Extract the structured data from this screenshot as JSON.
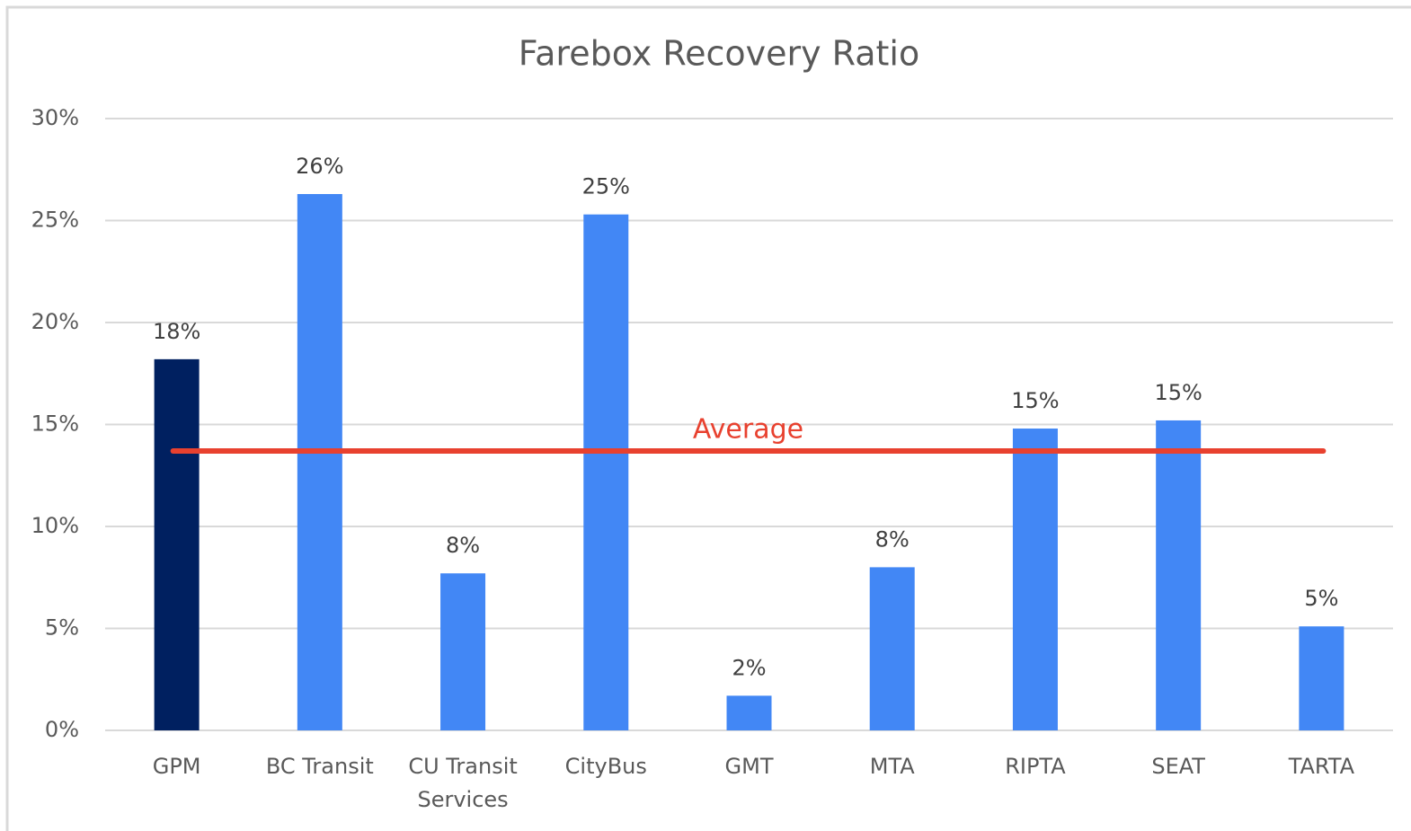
{
  "chart_data": {
    "type": "bar",
    "title": "Farebox Recovery Ratio",
    "categories": [
      "GPM",
      "BC Transit",
      "CU Transit Services",
      "CityBus",
      "GMT",
      "MTA",
      "RIPTA",
      "SEAT",
      "TARTA"
    ],
    "values": [
      18.2,
      26.3,
      7.7,
      25.3,
      1.7,
      8.0,
      14.8,
      15.2,
      5.1
    ],
    "value_labels": [
      "18%",
      "26%",
      "8%",
      "25%",
      "2%",
      "8%",
      "15%",
      "15%",
      "5%"
    ],
    "colors": [
      "#002060",
      "#4287f5",
      "#4287f5",
      "#4287f5",
      "#4287f5",
      "#4287f5",
      "#4287f5",
      "#4287f5",
      "#4287f5"
    ],
    "ylim": [
      0,
      30
    ],
    "yticks": [
      {
        "value": 0,
        "label": "0%"
      },
      {
        "value": 5,
        "label": "5%"
      },
      {
        "value": 10,
        "label": "10%"
      },
      {
        "value": 15,
        "label": "15%"
      },
      {
        "value": 20,
        "label": "20%"
      },
      {
        "value": 25,
        "label": "25%"
      },
      {
        "value": 30,
        "label": "30%"
      }
    ],
    "grid": true,
    "average": {
      "label": "Average",
      "value": 13.7,
      "color": "#e8412f"
    }
  }
}
